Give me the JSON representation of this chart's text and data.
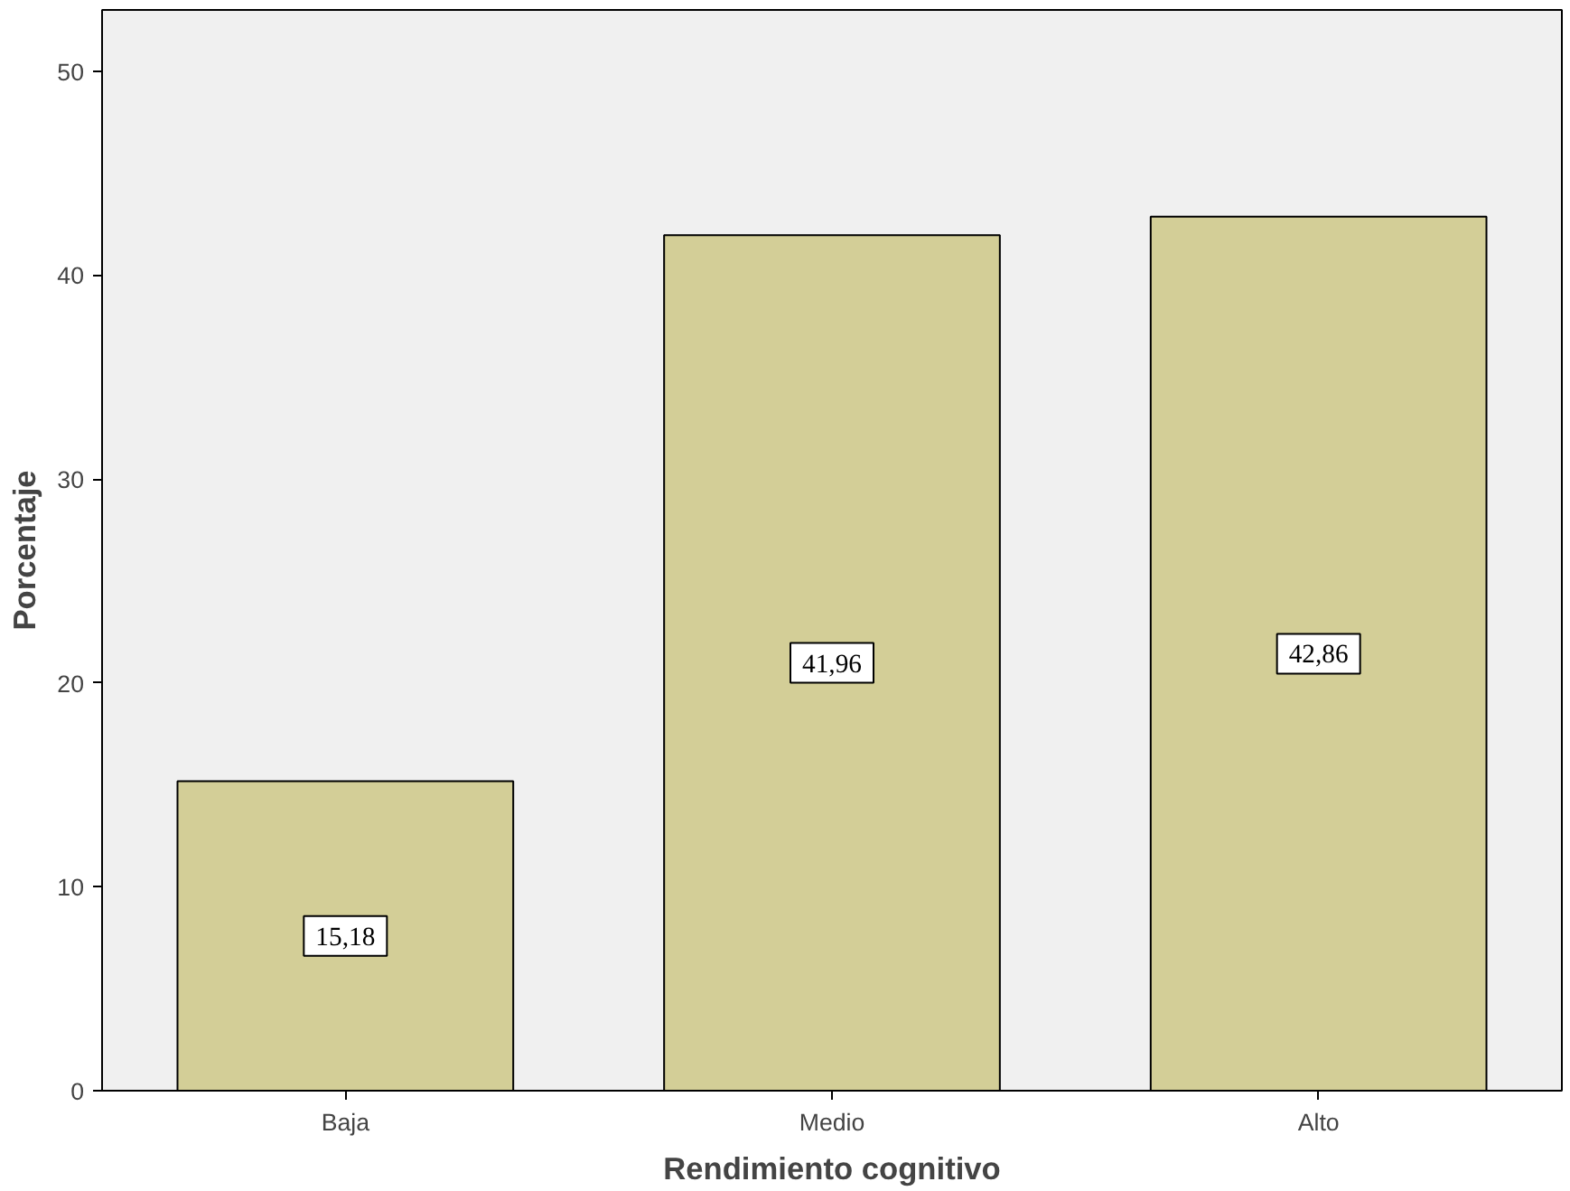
{
  "chart_data": {
    "type": "bar",
    "xlabel": "Rendimiento cognitivo",
    "ylabel": "Porcentaje",
    "categories": [
      "Baja",
      "Medio",
      "Alto"
    ],
    "values": [
      15.18,
      41.96,
      42.86
    ],
    "value_labels": [
      "15,18",
      "41,96",
      "42,86"
    ],
    "color": "#d3ce97",
    "ylim": [
      0,
      53
    ],
    "yticks": [
      0,
      10,
      20,
      30,
      40,
      50
    ],
    "grid": false
  }
}
